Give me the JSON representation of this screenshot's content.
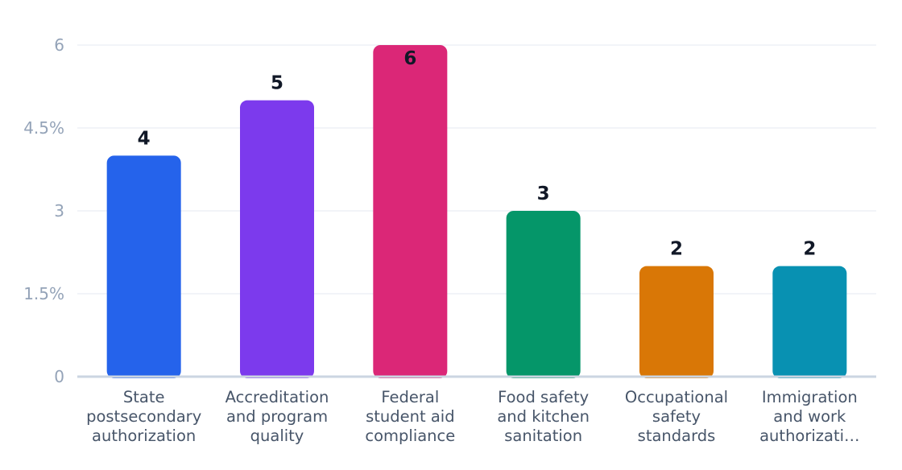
{
  "chart_data": {
    "type": "bar",
    "categories": [
      [
        "State",
        "postsecondary",
        "authorization"
      ],
      [
        "Accreditation",
        "and program",
        "quality"
      ],
      [
        "Federal",
        "student aid",
        "compliance"
      ],
      [
        "Food safety",
        "and kitchen",
        "sanitation"
      ],
      [
        "Occupational",
        "safety",
        "standards"
      ],
      [
        "Immigration",
        "and work",
        "authorizati…"
      ]
    ],
    "values": [
      4,
      5,
      6,
      3,
      2,
      2
    ],
    "value_labels": [
      "4",
      "5",
      "6",
      "3",
      "2",
      "2"
    ],
    "colors": [
      "#2563eb",
      "#7c3aed",
      "#db2777",
      "#059669",
      "#d97706",
      "#0891b2"
    ],
    "yticks": [
      0,
      1.5,
      3,
      4.5,
      6
    ],
    "ytick_labels": [
      "0",
      "1.5%",
      "3",
      "4.5%",
      "6"
    ],
    "ylim": [
      0,
      6
    ],
    "grid": true,
    "legend": "none",
    "title": "",
    "xlabel": "",
    "ylabel": ""
  }
}
